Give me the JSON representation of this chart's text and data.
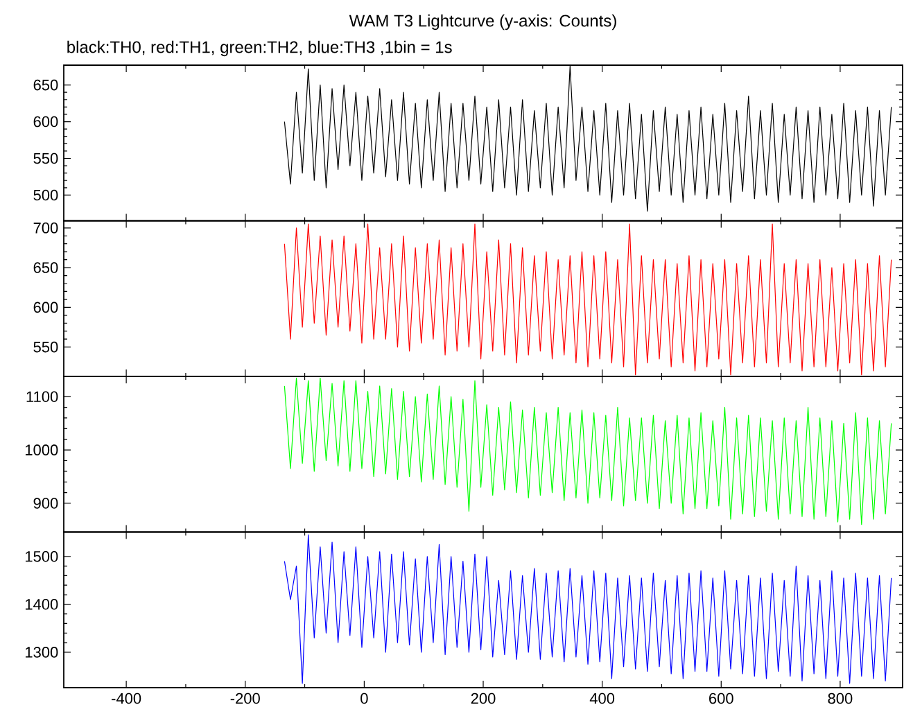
{
  "chart_data": [
    {
      "type": "line",
      "title": "WAM T3 Lightcurve (y-axis: Counts)",
      "subtitle": "black:TH0, red:TH1, green:TH2, blue:TH3 ,1bin = 1s",
      "x": [
        -134,
        -124,
        -114,
        -104,
        -94,
        -84,
        -74,
        -64,
        -54,
        -44,
        -34,
        -24,
        -14,
        -4,
        6,
        16,
        26,
        36,
        46,
        56,
        66,
        76,
        86,
        96,
        106,
        116,
        126,
        136,
        146,
        156,
        166,
        176,
        186,
        196,
        206,
        216,
        226,
        236,
        246,
        256,
        266,
        276,
        286,
        296,
        306,
        316,
        326,
        336,
        346,
        356,
        366,
        376,
        386,
        396,
        406,
        416,
        426,
        436,
        446,
        456,
        466,
        476,
        486,
        496,
        506,
        516,
        526,
        536,
        546,
        556,
        566,
        576,
        586,
        596,
        606,
        616,
        626,
        636,
        646,
        656,
        666,
        676,
        686,
        696,
        706,
        716,
        726,
        736,
        746,
        756,
        766,
        776,
        786,
        796,
        806,
        816,
        826,
        836,
        846,
        856,
        866,
        876,
        886
      ],
      "series": [
        {
          "color": "#000000",
          "values": [
            600,
            515,
            640,
            530,
            672,
            520,
            650,
            510,
            645,
            535,
            650,
            540,
            640,
            520,
            635,
            530,
            645,
            525,
            630,
            520,
            640,
            515,
            625,
            510,
            630,
            520,
            640,
            505,
            625,
            510,
            625,
            520,
            635,
            515,
            620,
            505,
            630,
            510,
            620,
            500,
            630,
            505,
            615,
            510,
            625,
            500,
            620,
            510,
            676,
            520,
            620,
            505,
            615,
            500,
            625,
            490,
            615,
            500,
            625,
            495,
            610,
            478,
            615,
            505,
            620,
            500,
            610,
            490,
            615,
            500,
            620,
            495,
            610,
            500,
            625,
            490,
            615,
            505,
            635,
            495,
            615,
            500,
            625,
            490,
            610,
            500,
            620,
            495,
            615,
            490,
            620,
            500,
            610,
            495,
            625,
            490,
            615,
            500,
            620,
            485,
            615,
            500,
            620
          ]
        }
      ],
      "xlim": [
        -505,
        905
      ],
      "xticks": [
        -400,
        -200,
        0,
        200,
        400,
        600,
        800
      ],
      "ylim": [
        465,
        677
      ],
      "yticks": [
        500,
        550,
        600,
        650
      ],
      "tick_labels": "y"
    },
    {
      "type": "line",
      "x": [
        -134,
        -124,
        -114,
        -104,
        -94,
        -84,
        -74,
        -64,
        -54,
        -44,
        -34,
        -24,
        -14,
        -4,
        6,
        16,
        26,
        36,
        46,
        56,
        66,
        76,
        86,
        96,
        106,
        116,
        126,
        136,
        146,
        156,
        166,
        176,
        186,
        196,
        206,
        216,
        226,
        236,
        246,
        256,
        266,
        276,
        286,
        296,
        306,
        316,
        326,
        336,
        346,
        356,
        366,
        376,
        386,
        396,
        406,
        416,
        426,
        436,
        446,
        456,
        466,
        476,
        486,
        496,
        506,
        516,
        526,
        536,
        546,
        556,
        566,
        576,
        586,
        596,
        606,
        616,
        626,
        636,
        646,
        656,
        666,
        676,
        686,
        696,
        706,
        716,
        726,
        736,
        746,
        756,
        766,
        776,
        786,
        796,
        806,
        816,
        826,
        836,
        846,
        856,
        866,
        876,
        886
      ],
      "series": [
        {
          "color": "#ff0000",
          "values": [
            680,
            560,
            700,
            575,
            705,
            580,
            690,
            565,
            685,
            575,
            690,
            570,
            680,
            555,
            705,
            560,
            675,
            560,
            680,
            550,
            690,
            545,
            675,
            555,
            680,
            560,
            685,
            540,
            675,
            545,
            680,
            550,
            705,
            535,
            670,
            545,
            685,
            540,
            680,
            530,
            675,
            540,
            665,
            545,
            670,
            535,
            660,
            540,
            665,
            530,
            670,
            525,
            665,
            535,
            670,
            530,
            660,
            525,
            705,
            515,
            665,
            530,
            660,
            535,
            660,
            525,
            655,
            530,
            665,
            520,
            660,
            525,
            655,
            535,
            660,
            515,
            655,
            530,
            665,
            525,
            660,
            530,
            705,
            525,
            655,
            530,
            660,
            520,
            655,
            525,
            660,
            525,
            650,
            520,
            655,
            530,
            660,
            515,
            655,
            520,
            665,
            525,
            660
          ]
        }
      ],
      "xlim": [
        -505,
        905
      ],
      "xticks": [
        -400,
        -200,
        0,
        200,
        400,
        600,
        800
      ],
      "ylim": [
        513,
        709
      ],
      "yticks": [
        550,
        600,
        650,
        700
      ],
      "tick_labels": "y"
    },
    {
      "type": "line",
      "x": [
        -134,
        -124,
        -114,
        -104,
        -94,
        -84,
        -74,
        -64,
        -54,
        -44,
        -34,
        -24,
        -14,
        -4,
        6,
        16,
        26,
        36,
        46,
        56,
        66,
        76,
        86,
        96,
        106,
        116,
        126,
        136,
        146,
        156,
        166,
        176,
        186,
        196,
        206,
        216,
        226,
        236,
        246,
        256,
        266,
        276,
        286,
        296,
        306,
        316,
        326,
        336,
        346,
        356,
        366,
        376,
        386,
        396,
        406,
        416,
        426,
        436,
        446,
        456,
        466,
        476,
        486,
        496,
        506,
        516,
        526,
        536,
        546,
        556,
        566,
        576,
        586,
        596,
        606,
        616,
        626,
        636,
        646,
        656,
        666,
        676,
        686,
        696,
        706,
        716,
        726,
        736,
        746,
        756,
        766,
        776,
        786,
        796,
        806,
        816,
        826,
        836,
        846,
        856,
        866,
        876,
        886
      ],
      "series": [
        {
          "color": "#00ff00",
          "values": [
            1120,
            965,
            1135,
            975,
            1130,
            960,
            1135,
            980,
            1125,
            970,
            1130,
            960,
            1130,
            965,
            1110,
            950,
            1120,
            955,
            1115,
            945,
            1110,
            950,
            1100,
            940,
            1105,
            945,
            1120,
            935,
            1100,
            930,
            1095,
            885,
            1130,
            930,
            1085,
            915,
            1080,
            925,
            1090,
            920,
            1075,
            910,
            1080,
            915,
            1070,
            920,
            1080,
            905,
            1070,
            910,
            1075,
            900,
            1070,
            910,
            1065,
            905,
            1080,
            895,
            1060,
            905,
            1060,
            900,
            1065,
            890,
            1055,
            900,
            1065,
            880,
            1060,
            890,
            1070,
            890,
            1055,
            895,
            1080,
            870,
            1060,
            880,
            1065,
            875,
            1060,
            885,
            1055,
            870,
            1060,
            880,
            1055,
            875,
            1080,
            870,
            1060,
            875,
            1055,
            865,
            1050,
            870,
            1070,
            860,
            1060,
            870,
            1055,
            880,
            1050
          ]
        }
      ],
      "xlim": [
        -505,
        905
      ],
      "xticks": [
        -400,
        -200,
        0,
        200,
        400,
        600,
        800
      ],
      "ylim": [
        846,
        1138
      ],
      "yticks": [
        900,
        1000,
        1100
      ],
      "tick_labels": "y"
    },
    {
      "type": "line",
      "x": [
        -134,
        -124,
        -114,
        -104,
        -94,
        -84,
        -74,
        -64,
        -54,
        -44,
        -34,
        -24,
        -14,
        -4,
        6,
        16,
        26,
        36,
        46,
        56,
        66,
        76,
        86,
        96,
        106,
        116,
        126,
        136,
        146,
        156,
        166,
        176,
        186,
        196,
        206,
        216,
        226,
        236,
        246,
        256,
        266,
        276,
        286,
        296,
        306,
        316,
        326,
        336,
        346,
        356,
        366,
        376,
        386,
        396,
        406,
        416,
        426,
        436,
        446,
        456,
        466,
        476,
        486,
        496,
        506,
        516,
        526,
        536,
        546,
        556,
        566,
        576,
        586,
        596,
        606,
        616,
        626,
        636,
        646,
        656,
        666,
        676,
        686,
        696,
        706,
        716,
        726,
        736,
        746,
        756,
        766,
        776,
        786,
        796,
        806,
        816,
        826,
        836,
        846,
        856,
        866,
        876,
        886
      ],
      "series": [
        {
          "color": "#0000ff",
          "values": [
            1490,
            1410,
            1480,
            1235,
            1545,
            1330,
            1520,
            1340,
            1530,
            1320,
            1510,
            1335,
            1520,
            1310,
            1500,
            1330,
            1510,
            1300,
            1505,
            1320,
            1510,
            1315,
            1495,
            1300,
            1500,
            1320,
            1525,
            1295,
            1500,
            1310,
            1490,
            1300,
            1505,
            1305,
            1500,
            1290,
            1450,
            1295,
            1470,
            1285,
            1460,
            1300,
            1475,
            1285,
            1465,
            1290,
            1470,
            1280,
            1475,
            1290,
            1460,
            1275,
            1470,
            1280,
            1465,
            1245,
            1455,
            1270,
            1460,
            1265,
            1455,
            1260,
            1465,
            1270,
            1450,
            1255,
            1460,
            1245,
            1465,
            1260,
            1470,
            1260,
            1455,
            1250,
            1470,
            1265,
            1450,
            1255,
            1460,
            1250,
            1455,
            1245,
            1465,
            1260,
            1450,
            1250,
            1480,
            1240,
            1460,
            1255,
            1450,
            1245,
            1470,
            1250,
            1455,
            1235,
            1465,
            1250,
            1455,
            1245,
            1460,
            1240,
            1455
          ]
        }
      ],
      "xlim": [
        -505,
        905
      ],
      "xticks": [
        -400,
        -200,
        0,
        200,
        400,
        600,
        800
      ],
      "ylim": [
        1226,
        1551
      ],
      "yticks": [
        1300,
        1400,
        1500
      ]
    }
  ]
}
